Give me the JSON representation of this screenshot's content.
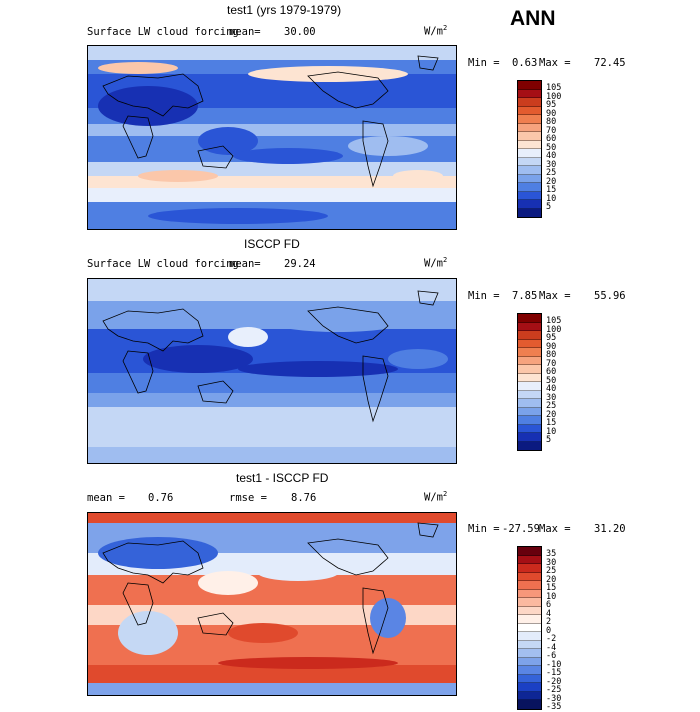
{
  "season": "ANN",
  "panels": [
    {
      "title": "test1 (yrs 1979-1979)",
      "variable": "Surface LW cloud forcing",
      "mean_label": "mean=",
      "mean_value": "30.00",
      "units": "W/m",
      "units_sup": "2",
      "min_label": "Min =",
      "min_value": "0.63",
      "max_label": "Max =",
      "max_value": "72.45",
      "levels": [
        "105",
        "100",
        "95",
        "90",
        "80",
        "70",
        "60",
        "50",
        "40",
        "30",
        "25",
        "20",
        "15",
        "10",
        "5"
      ]
    },
    {
      "title": "ISCCP FD",
      "variable": "Surface LW cloud forcing",
      "mean_label": "mean=",
      "mean_value": "29.24",
      "units": "W/m",
      "units_sup": "2",
      "min_label": "Min =",
      "min_value": "7.85",
      "max_label": "Max =",
      "max_value": "55.96",
      "levels": [
        "105",
        "100",
        "95",
        "90",
        "80",
        "70",
        "60",
        "50",
        "40",
        "30",
        "25",
        "20",
        "15",
        "10",
        "5"
      ]
    },
    {
      "title": "test1 - ISCCP FD",
      "mean_label": "mean =",
      "mean_value": "0.76",
      "rmse_label": "rmse =",
      "rmse_value": "8.76",
      "units": "W/m",
      "units_sup": "2",
      "min_label": "Min =",
      "min_value": "-27.59",
      "max_label": "Max =",
      "max_value": "31.20",
      "levels": [
        "35",
        "30",
        "25",
        "20",
        "15",
        "10",
        "6",
        "4",
        "2",
        "0",
        "-2",
        "-4",
        "-6",
        "-10",
        "-15",
        "-20",
        "-25",
        "-30",
        "-35"
      ]
    }
  ],
  "colors": {
    "abs_scale": [
      "#7f0000",
      "#a50f15",
      "#cb3d1e",
      "#e35b2f",
      "#ef7f50",
      "#f6a37e",
      "#fbc7aa",
      "#fde4d2",
      "#e8effc",
      "#c4d7f5",
      "#9fbdf0",
      "#7aa2ea",
      "#4f7fe2",
      "#2a55d6",
      "#1730b3",
      "#0b1a80"
    ],
    "anom_scale": [
      "#67000d",
      "#a50f15",
      "#cb2a1d",
      "#e04a2d",
      "#ef7050",
      "#f7977a",
      "#fbb9a0",
      "#fdd7c6",
      "#fff0e8",
      "#ffffff",
      "#e3ecfb",
      "#c5d8f4",
      "#a3bff0",
      "#7ea3ea",
      "#5a85e4",
      "#3563d9",
      "#1b40c4",
      "#0e2695",
      "#08135e"
    ]
  }
}
